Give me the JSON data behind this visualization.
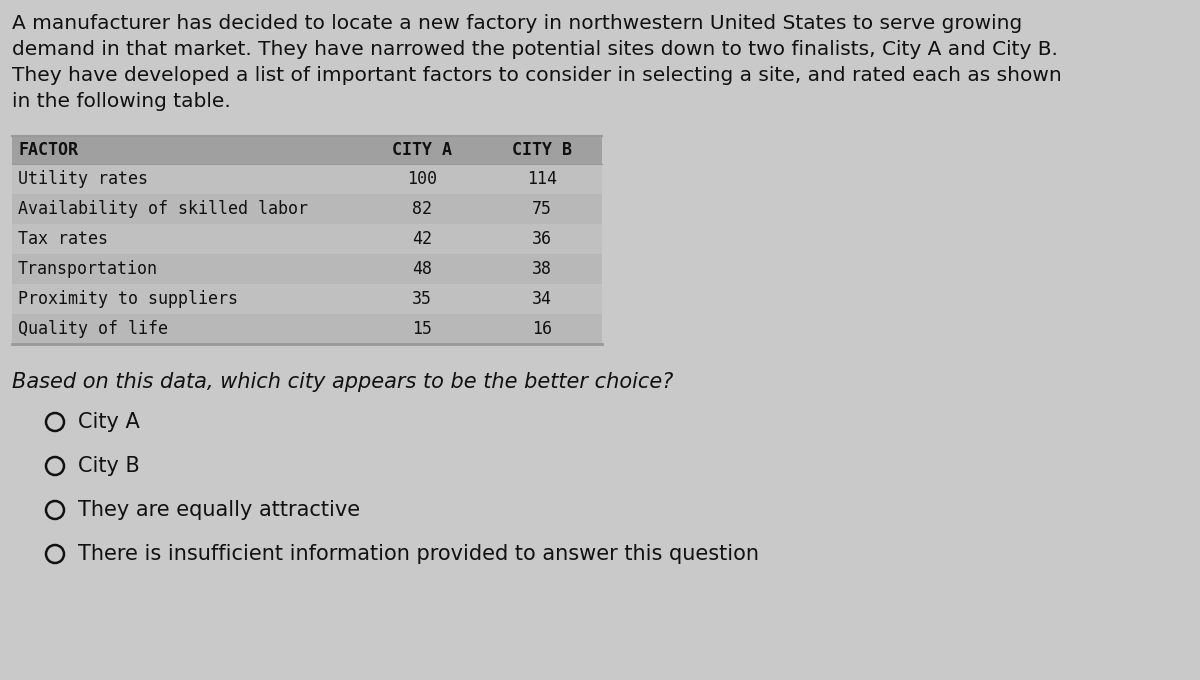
{
  "background_color": "#c9c9c9",
  "paragraph_text": "A manufacturer has decided to locate a new factory in northwestern United States to serve growing\ndemand in that market. They have narrowed the potential sites down to two finalists, City A and City B.\nThey have developed a list of important factors to consider in selecting a site, and rated each as shown\nin the following table.",
  "paragraph_fontsize": 14.5,
  "paragraph_font": "sans-serif",
  "table_header": [
    "FACTOR",
    "CITY A",
    "CITY B"
  ],
  "table_header_fontsize": 12,
  "table_row_fontsize": 12,
  "table_font": "monospace",
  "table_header_bg": "#a0a0a0",
  "table_row_bg_even": "#c0c0c0",
  "table_row_bg_odd": "#b8b8b8",
  "table_rows": [
    [
      "Utility rates",
      "100",
      "114"
    ],
    [
      "Availability of skilled labor",
      "82",
      "75"
    ],
    [
      "Tax rates",
      "42",
      "36"
    ],
    [
      "Transportation",
      "48",
      "38"
    ],
    [
      "Proximity to suppliers",
      "35",
      "34"
    ],
    [
      "Quality of life",
      "15",
      "16"
    ]
  ],
  "question_text": "Based on this data, which city appears to be the better choice?",
  "question_fontsize": 15,
  "question_font": "sans-serif",
  "options": [
    "City A",
    "City B",
    "They are equally attractive",
    "There is insufficient information provided to answer this question"
  ],
  "options_fontsize": 15,
  "options_font": "sans-serif",
  "text_color": "#111111",
  "line_color": "#888888",
  "border_color": "#999999"
}
